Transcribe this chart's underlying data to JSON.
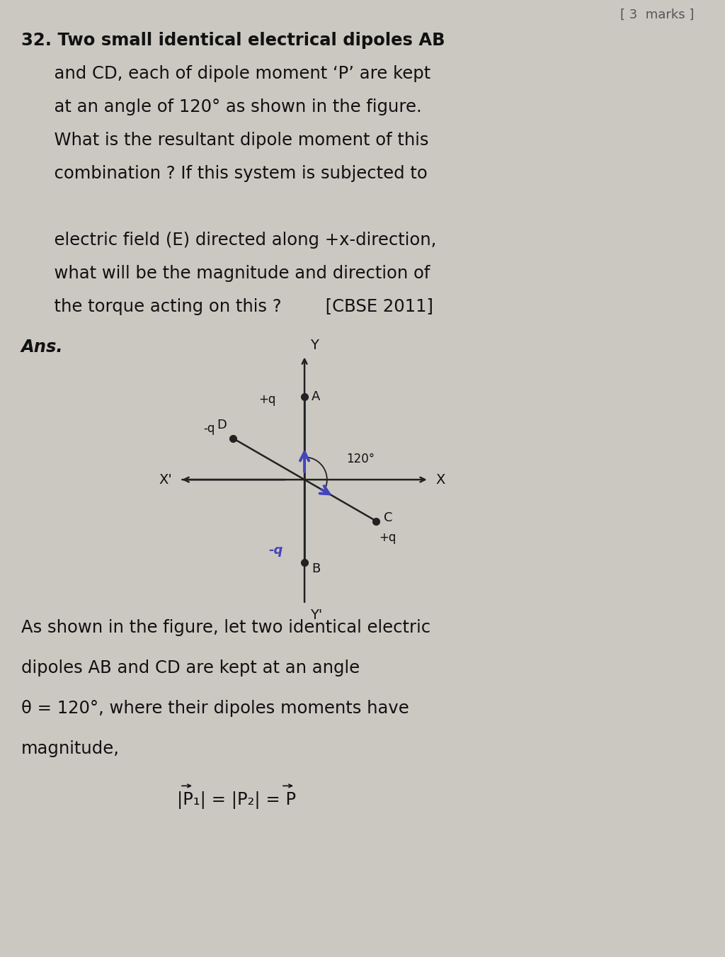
{
  "bg_color": "#cbc8c2",
  "fig_width": 10.24,
  "fig_height": 13.51,
  "dpi": 100,
  "top_right_text": "[ 3  marks ]",
  "question_lines": [
    [
      "32. Two small identical electrical dipoles AB",
      true
    ],
    [
      "      and CD, each of dipole moment ‘P’ are kept",
      false
    ],
    [
      "      at an angle of 120° as shown in the figure.",
      false
    ],
    [
      "      What is the resultant dipole moment of this",
      false
    ],
    [
      "      combination ? If this system is subjected to",
      false
    ],
    [
      "",
      false
    ],
    [
      "      electric field (E) directed along +x-direction,",
      false
    ],
    [
      "      what will be the magnitude and direction of",
      false
    ],
    [
      "      the torque acting on this ?        [CBSE 2011]",
      false
    ]
  ],
  "ans_label": "Ans.",
  "ans_lines": [
    "As shown in the figure, let two identical electric",
    "dipoles AB and CD are kept at an angle",
    "θ = 120°, where their dipoles moments have",
    "magnitude,"
  ],
  "formula_line": "|P₁| = |P₂| = P",
  "diagram": {
    "arrow_color": "#4444bb",
    "line_color": "#222222",
    "axis_color": "#222222",
    "charge_color": "#222222",
    "dlen": 1.4,
    "arc_r": 0.38
  }
}
